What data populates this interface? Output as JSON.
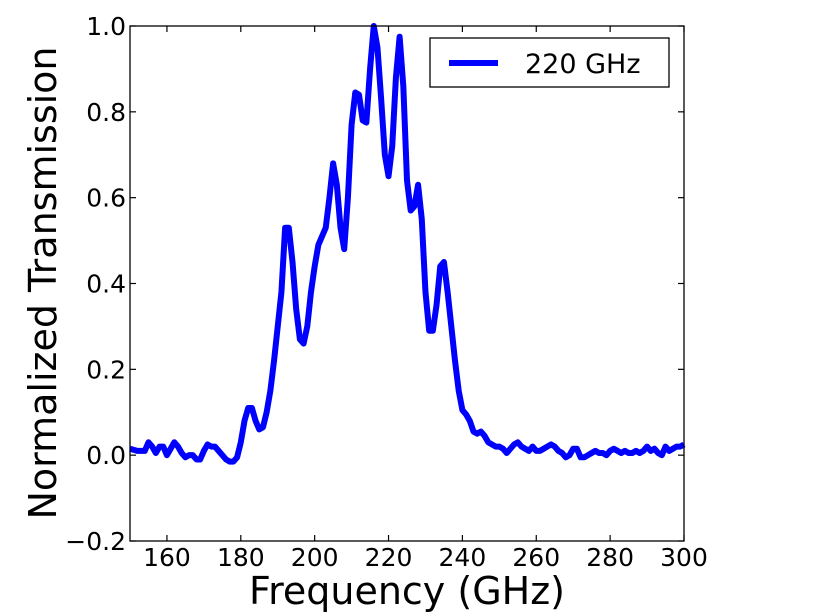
{
  "chart_data": {
    "type": "line",
    "xlabel": "Frequency (GHz)",
    "ylabel": "Normalized Transmission",
    "xlim": [
      150,
      300
    ],
    "ylim": [
      -0.2,
      1.0
    ],
    "xticks": [
      160,
      180,
      200,
      220,
      240,
      260,
      280,
      300
    ],
    "xtick_labels": [
      "160",
      "180",
      "200",
      "220",
      "240",
      "260",
      "280",
      "300"
    ],
    "yticks": [
      -0.2,
      0.0,
      0.2,
      0.4,
      0.6,
      0.8,
      1.0
    ],
    "ytick_labels": [
      "−0.2",
      "0.0",
      "0.2",
      "0.4",
      "0.6",
      "0.8",
      "1.0"
    ],
    "grid": false,
    "legend_position": "top-right",
    "series": [
      {
        "name": "220 GHz",
        "color": "#0000ff",
        "x": [
          150,
          152,
          154,
          155,
          156,
          157,
          158,
          159,
          160,
          161,
          162,
          163,
          164,
          165,
          166,
          167,
          168,
          169,
          170,
          171,
          172,
          173,
          174,
          175,
          176,
          177,
          178,
          179,
          180,
          181,
          182,
          183,
          184,
          185,
          186,
          187,
          188,
          189,
          190,
          191,
          192,
          193,
          194,
          195,
          196,
          197,
          198,
          199,
          200,
          201,
          202,
          203,
          204,
          205,
          206,
          207,
          208,
          209,
          210,
          211,
          212,
          213,
          214,
          215,
          216,
          217,
          218,
          219,
          220,
          221,
          222,
          223,
          224,
          225,
          226,
          227,
          228,
          229,
          230,
          231,
          232,
          233,
          234,
          235,
          236,
          237,
          238,
          239,
          240,
          241,
          242,
          243,
          244,
          245,
          246,
          247,
          248,
          249,
          250,
          251,
          252,
          253,
          254,
          255,
          256,
          257,
          258,
          259,
          260,
          261,
          262,
          263,
          264,
          265,
          266,
          267,
          268,
          269,
          270,
          271,
          272,
          273,
          274,
          275,
          276,
          277,
          278,
          279,
          280,
          281,
          282,
          283,
          284,
          285,
          286,
          287,
          288,
          289,
          290,
          291,
          292,
          293,
          294,
          295,
          296,
          297,
          298,
          299,
          300
        ],
        "values": [
          0.015,
          0.01,
          0.01,
          0.03,
          0.02,
          0.005,
          0.02,
          0.02,
          0.0,
          0.015,
          0.03,
          0.02,
          0.005,
          -0.005,
          0.0,
          0.0,
          -0.01,
          -0.01,
          0.01,
          0.025,
          0.02,
          0.02,
          0.01,
          0.0,
          -0.01,
          -0.015,
          -0.015,
          -0.005,
          0.03,
          0.08,
          0.11,
          0.11,
          0.08,
          0.06,
          0.065,
          0.1,
          0.15,
          0.22,
          0.3,
          0.38,
          0.53,
          0.53,
          0.45,
          0.34,
          0.27,
          0.26,
          0.3,
          0.38,
          0.44,
          0.49,
          0.51,
          0.53,
          0.6,
          0.68,
          0.63,
          0.53,
          0.48,
          0.6,
          0.77,
          0.845,
          0.84,
          0.78,
          0.775,
          0.9,
          1.0,
          0.95,
          0.83,
          0.7,
          0.65,
          0.72,
          0.88,
          0.975,
          0.86,
          0.64,
          0.57,
          0.58,
          0.63,
          0.55,
          0.38,
          0.29,
          0.29,
          0.35,
          0.44,
          0.45,
          0.38,
          0.3,
          0.22,
          0.15,
          0.105,
          0.095,
          0.08,
          0.055,
          0.05,
          0.055,
          0.045,
          0.03,
          0.025,
          0.02,
          0.02,
          0.015,
          0.005,
          0.015,
          0.025,
          0.03,
          0.02,
          0.015,
          0.01,
          0.02,
          0.01,
          0.01,
          0.015,
          0.02,
          0.025,
          0.02,
          0.01,
          0.005,
          -0.005,
          0.0,
          0.015,
          0.015,
          -0.005,
          -0.005,
          0.0,
          0.005,
          0.01,
          0.005,
          0.005,
          0.0,
          0.01,
          0.015,
          0.01,
          0.005,
          0.01,
          0.005,
          0.005,
          0.01,
          0.005,
          0.01,
          0.02,
          0.01,
          0.015,
          0.005,
          0.0,
          0.02,
          0.01,
          0.015,
          0.02,
          0.02,
          0.025
        ]
      }
    ]
  }
}
